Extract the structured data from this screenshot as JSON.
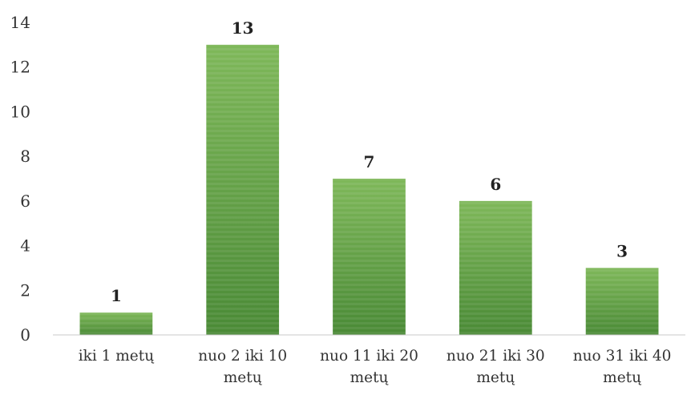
{
  "chart_data": {
    "type": "bar",
    "categories": [
      [
        "iki 1 metų"
      ],
      [
        "nuo 2 iki 10",
        "metų"
      ],
      [
        "nuo 11 iki 20",
        "metų"
      ],
      [
        "nuo 21 iki 30",
        "metų"
      ],
      [
        "nuo 31 iki 40",
        "metų"
      ]
    ],
    "values": [
      1,
      13,
      7,
      6,
      3
    ],
    "data_labels": [
      "1",
      "13",
      "7",
      "6",
      "3"
    ],
    "y_ticks": [
      "0",
      "2",
      "4",
      "6",
      "8",
      "10",
      "12",
      "14"
    ],
    "ylim": [
      0,
      14
    ],
    "grid": false,
    "legend": "none",
    "colors": {
      "bar_top": "#7fb85a",
      "bar_bottom": "#4a8a36",
      "bar_stripe": "#ffffff"
    }
  }
}
